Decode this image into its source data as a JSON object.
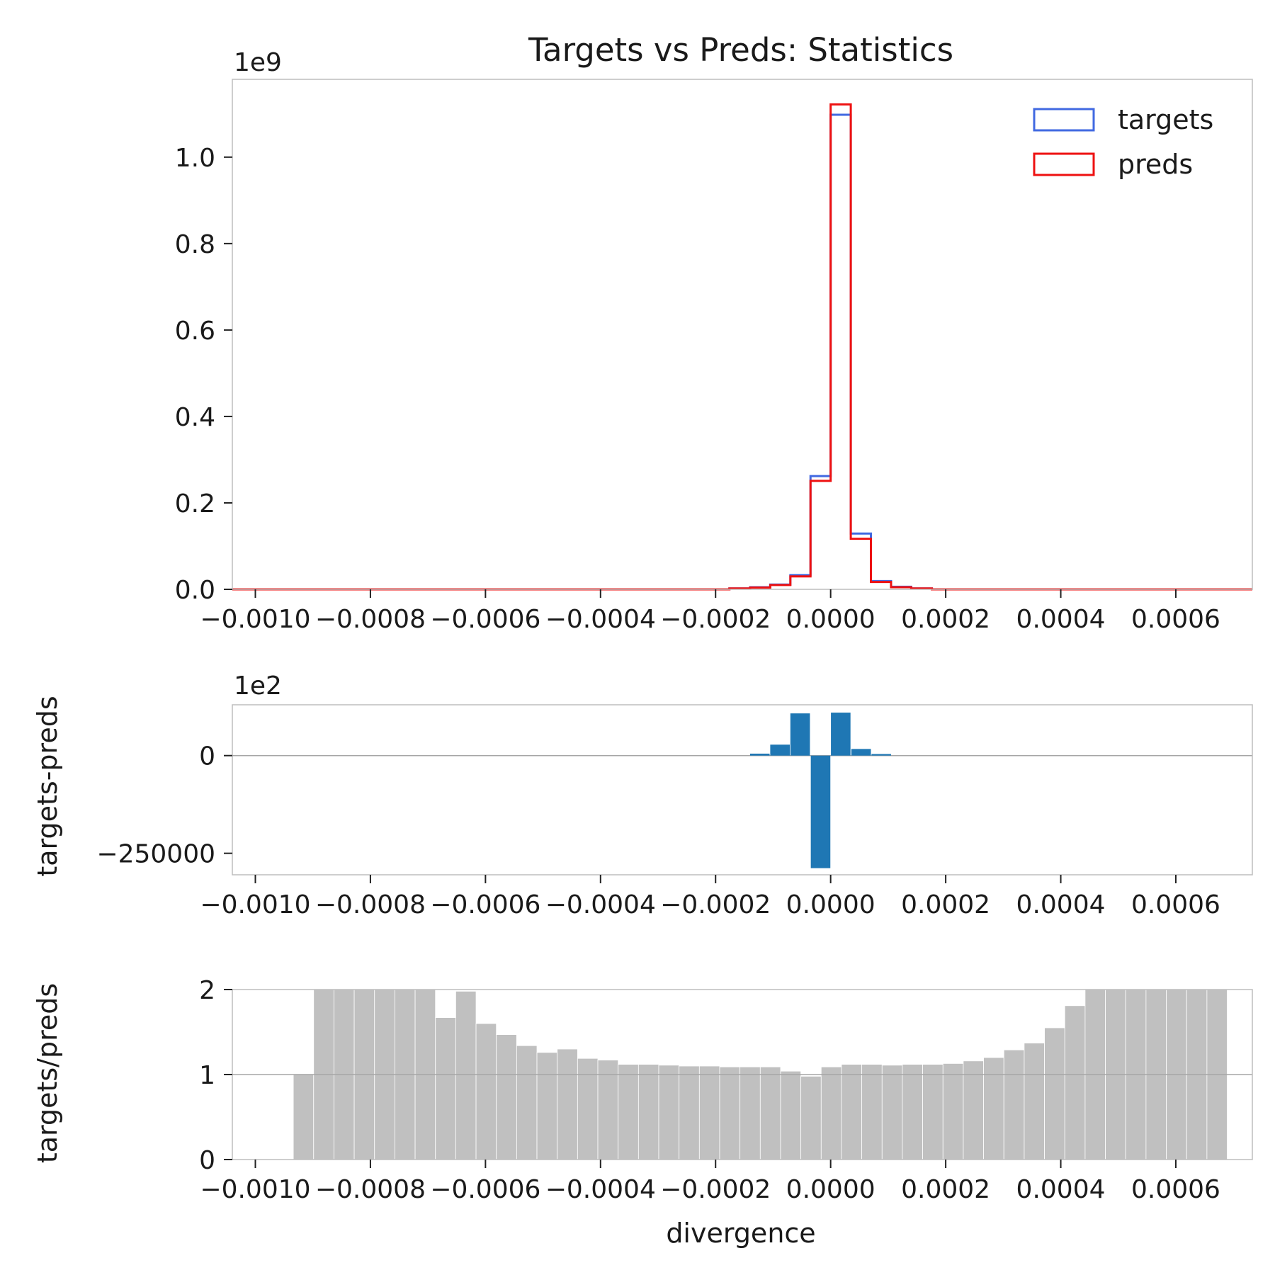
{
  "colors": {
    "targets": "#4169e1",
    "preds": "#ee1111",
    "diff_bar": "#1f77b4",
    "ratio_bar": "#c0c0c0",
    "frame": "#bdbdbd",
    "refline": "#a6a6a6"
  },
  "chart_data": [
    {
      "type": "step-histogram",
      "title": "Targets vs Preds: Statistics",
      "offset_label": "1e9",
      "xlim": [
        -0.00104,
        0.000733
      ],
      "ylim": [
        0,
        1.18
      ],
      "xticks": [
        -0.001,
        -0.0008,
        -0.0006,
        -0.0004,
        -0.0002,
        0.0,
        0.0002,
        0.0004,
        0.0006
      ],
      "xtick_labels": [
        "−0.0010",
        "−0.0008",
        "−0.0006",
        "−0.0004",
        "−0.0002",
        "0.0000",
        "0.0002",
        "0.0004",
        "0.0006"
      ],
      "yticks": [
        0.0,
        0.2,
        0.4,
        0.6,
        0.8,
        1.0
      ],
      "ytick_labels": [
        "0.0",
        "0.2",
        "0.4",
        "0.6",
        "0.8",
        "1.0"
      ],
      "legend_position": "top-right",
      "bin_edges": [
        -0.000176,
        -0.00014,
        -0.000105,
        -7e-05,
        -3.5e-05,
        0.0,
        3.5e-05,
        7e-05,
        0.000105,
        0.00014,
        0.000176
      ],
      "series": [
        {
          "name": "targets",
          "color_key": "targets",
          "values": [
            0.002,
            0.005,
            0.011,
            0.033,
            0.262,
            1.098,
            0.129,
            0.019,
            0.006,
            0.002
          ]
        },
        {
          "name": "preds",
          "color_key": "preds",
          "values": [
            0.002,
            0.004,
            0.01,
            0.03,
            0.251,
            1.122,
            0.117,
            0.017,
            0.005,
            0.002
          ]
        }
      ]
    },
    {
      "type": "bar",
      "ylabel": "targets-preds",
      "offset_label": "1e2",
      "xlim": [
        -0.00104,
        0.000733
      ],
      "ylim": [
        -305000,
        130000
      ],
      "xticks": [
        -0.001,
        -0.0008,
        -0.0006,
        -0.0004,
        -0.0002,
        0.0,
        0.0002,
        0.0004,
        0.0006
      ],
      "xtick_labels": [
        "−0.0010",
        "−0.0008",
        "−0.0006",
        "−0.0004",
        "−0.0002",
        "0.0000",
        "0.0002",
        "0.0004",
        "0.0006"
      ],
      "yticks": [
        0,
        -250000
      ],
      "ytick_labels": [
        "0",
        "−250000"
      ],
      "bar_width": 3.4e-05,
      "x": [
        -0.000123,
        -8.8e-05,
        -5.3e-05,
        -1.75e-05,
        1.75e-05,
        5.3e-05,
        8.8e-05
      ],
      "values": [
        5000,
        28000,
        108000,
        -288000,
        110000,
        17000,
        4000
      ]
    },
    {
      "type": "bar",
      "ylabel": "targets/preds",
      "xlabel": "divergence",
      "xlim": [
        -0.00104,
        0.000733
      ],
      "ylim": [
        0,
        2
      ],
      "xticks": [
        -0.001,
        -0.0008,
        -0.0006,
        -0.0004,
        -0.0002,
        0.0,
        0.0002,
        0.0004,
        0.0006
      ],
      "xtick_labels": [
        "−0.0010",
        "−0.0008",
        "−0.0006",
        "−0.0004",
        "−0.0002",
        "0.0000",
        "0.0002",
        "0.0004",
        "0.0006"
      ],
      "yticks": [
        0,
        1,
        2
      ],
      "ytick_labels": [
        "0",
        "1",
        "2"
      ],
      "bin_width": 3.529e-05,
      "bin_start": -0.000934,
      "values": [
        1.0,
        2.0,
        2.0,
        2.0,
        2.0,
        2.0,
        2.0,
        1.67,
        1.98,
        1.6,
        1.47,
        1.34,
        1.26,
        1.3,
        1.19,
        1.17,
        1.12,
        1.12,
        1.11,
        1.1,
        1.1,
        1.09,
        1.09,
        1.09,
        1.04,
        0.98,
        1.09,
        1.12,
        1.12,
        1.11,
        1.12,
        1.12,
        1.13,
        1.16,
        1.2,
        1.29,
        1.37,
        1.55,
        1.81,
        2.0,
        2.0,
        2.0,
        2.0,
        2.0,
        2.0,
        2.0
      ]
    }
  ]
}
